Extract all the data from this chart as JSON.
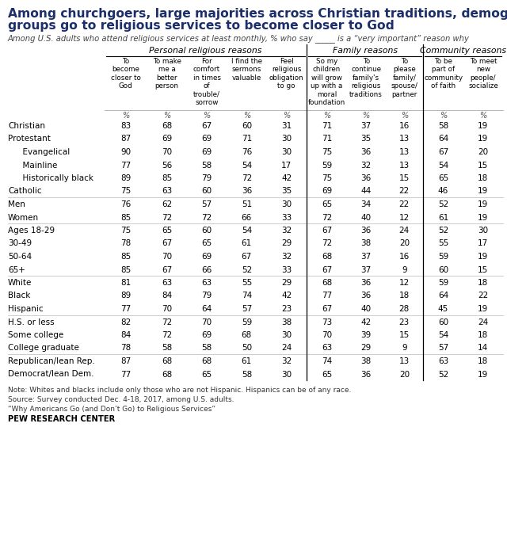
{
  "title_line1": "Among churchgoers, large majorities across Christian traditions, demographic",
  "title_line2": "groups go to religious services to become closer to God",
  "subtitle": "Among U.S. adults who attend religious services at least monthly, % who say _____ is a “very important” reason why",
  "col_headers": [
    "To\nbecome\ncloser to\nGod",
    "To make\nme a\nbetter\nperson",
    "For\ncomfort\nin times\nof\ntrouble/\nsorrow",
    "I find the\nsermons\nvaluable",
    "Feel\nreligious\nobligation\nto go",
    "So my\nchildren\nwill grow\nup with a\nmoral\nfoundation",
    "To\ncontinue\nfamily's\nreligious\ntraditions",
    "To\nplease\nfamily/\nspouse/\npartner",
    "To be\npart of\ncommunity\nof faith",
    "To meet\nnew\npeople/\nsocialize"
  ],
  "rows": [
    {
      "label": "Christian",
      "values": [
        83,
        68,
        67,
        60,
        31,
        71,
        37,
        16,
        58,
        19
      ],
      "indent": 0
    },
    {
      "label": "Protestant",
      "values": [
        87,
        69,
        69,
        71,
        30,
        71,
        35,
        13,
        64,
        19
      ],
      "indent": 0
    },
    {
      "label": "  Evangelical",
      "values": [
        90,
        70,
        69,
        76,
        30,
        75,
        36,
        13,
        67,
        20
      ],
      "indent": 1
    },
    {
      "label": "  Mainline",
      "values": [
        77,
        56,
        58,
        54,
        17,
        59,
        32,
        13,
        54,
        15
      ],
      "indent": 1
    },
    {
      "label": "  Historically black",
      "values": [
        89,
        85,
        79,
        72,
        42,
        75,
        36,
        15,
        65,
        18
      ],
      "indent": 1
    },
    {
      "label": "Catholic",
      "values": [
        75,
        63,
        60,
        36,
        35,
        69,
        44,
        22,
        46,
        19
      ],
      "indent": 0
    },
    {
      "label": "Men",
      "values": [
        76,
        62,
        57,
        51,
        30,
        65,
        34,
        22,
        52,
        19
      ],
      "indent": 0
    },
    {
      "label": "Women",
      "values": [
        85,
        72,
        72,
        66,
        33,
        72,
        40,
        12,
        61,
        19
      ],
      "indent": 0
    },
    {
      "label": "Ages 18-29",
      "values": [
        75,
        65,
        60,
        54,
        32,
        67,
        36,
        24,
        52,
        30
      ],
      "indent": 0
    },
    {
      "label": "30-49",
      "values": [
        78,
        67,
        65,
        61,
        29,
        72,
        38,
        20,
        55,
        17
      ],
      "indent": 0
    },
    {
      "label": "50-64",
      "values": [
        85,
        70,
        69,
        67,
        32,
        68,
        37,
        16,
        59,
        19
      ],
      "indent": 0
    },
    {
      "label": "65+",
      "values": [
        85,
        67,
        66,
        52,
        33,
        67,
        37,
        9,
        60,
        15
      ],
      "indent": 0
    },
    {
      "label": "White",
      "values": [
        81,
        63,
        63,
        55,
        29,
        68,
        36,
        12,
        59,
        18
      ],
      "indent": 0
    },
    {
      "label": "Black",
      "values": [
        89,
        84,
        79,
        74,
        42,
        77,
        36,
        18,
        64,
        22
      ],
      "indent": 0
    },
    {
      "label": "Hispanic",
      "values": [
        77,
        70,
        64,
        57,
        23,
        67,
        40,
        28,
        45,
        19
      ],
      "indent": 0
    },
    {
      "label": "H.S. or less",
      "values": [
        82,
        72,
        70,
        59,
        38,
        73,
        42,
        23,
        60,
        24
      ],
      "indent": 0
    },
    {
      "label": "Some college",
      "values": [
        84,
        72,
        69,
        68,
        30,
        70,
        39,
        15,
        54,
        18
      ],
      "indent": 0
    },
    {
      "label": "College graduate",
      "values": [
        78,
        58,
        58,
        50,
        24,
        63,
        29,
        9,
        57,
        14
      ],
      "indent": 0
    },
    {
      "label": "Republican/lean Rep.",
      "values": [
        87,
        68,
        68,
        61,
        32,
        74,
        38,
        13,
        63,
        18
      ],
      "indent": 0
    },
    {
      "label": "Democrat/lean Dem.",
      "values": [
        77,
        68,
        65,
        58,
        30,
        65,
        36,
        20,
        52,
        19
      ],
      "indent": 0
    }
  ],
  "sep_after": [
    5,
    7,
    11,
    14,
    17
  ],
  "note": "Note: Whites and blacks include only those who are not Hispanic. Hispanics can be of any race.\nSource: Survey conducted Dec. 4-18, 2017, among U.S. adults.\n“Why Americans Go (and Don’t Go) to Religious Services”",
  "pew": "PEW RESEARCH CENTER",
  "title_color": "#1c2f6b",
  "subtitle_color": "#444444",
  "text_color": "#000000",
  "note_color": "#333333",
  "sep_color": "#cccccc",
  "vline_color": "#000000",
  "bg_color": "#ffffff"
}
